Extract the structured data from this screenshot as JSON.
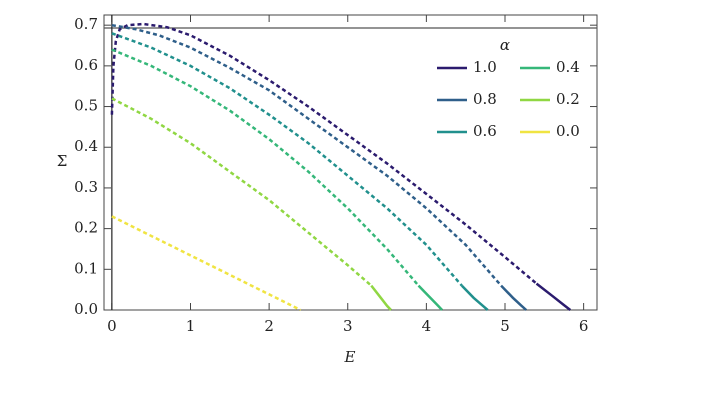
{
  "chart_data": {
    "type": "line",
    "xlabel": "E",
    "ylabel": "Σ",
    "legend_title": "α",
    "legend": "top-right",
    "xlim": [
      -0.1,
      6.17
    ],
    "ylim": [
      0,
      0.725
    ],
    "xticks": [
      0,
      1,
      2,
      3,
      4,
      5,
      6
    ],
    "yticks": [
      {
        "value": 0,
        "label": "0.0"
      },
      0.1,
      0.2,
      0.3,
      0.4,
      0.5,
      0.6,
      0.7
    ],
    "hlines": [
      0.693
    ],
    "vlines": [
      0
    ],
    "series": [
      {
        "name": "1.0",
        "color": "#2b1b6e",
        "x": [
          0,
          0.02,
          0.05,
          0.1,
          0.2,
          0.4,
          0.7,
          1,
          1.5,
          2,
          2.5,
          3,
          3.5,
          4,
          4.5,
          5,
          5.4
        ],
        "values": [
          0.48,
          0.6,
          0.66,
          0.69,
          0.7,
          0.703,
          0.695,
          0.675,
          0.625,
          0.565,
          0.5,
          0.43,
          0.36,
          0.285,
          0.21,
          0.13,
          0.065
        ],
        "solid_x": [
          5.4,
          5.6,
          5.75,
          5.83
        ],
        "solid_values": [
          0.065,
          0.035,
          0.012,
          0
        ]
      },
      {
        "name": "0.8",
        "color": "#2f5f8a",
        "x": [
          0,
          0.3,
          0.6,
          1,
          1.5,
          2,
          2.5,
          3,
          3.5,
          4,
          4.5,
          4.95
        ],
        "values": [
          0.7,
          0.69,
          0.675,
          0.645,
          0.595,
          0.54,
          0.47,
          0.4,
          0.33,
          0.25,
          0.16,
          0.06
        ],
        "solid_x": [
          4.95,
          5.1,
          5.2,
          5.27
        ],
        "solid_values": [
          0.06,
          0.03,
          0.012,
          0
        ]
      },
      {
        "name": "0.6",
        "color": "#21908d",
        "x": [
          0,
          0.5,
          1,
          1.5,
          2,
          2.5,
          3,
          3.5,
          4,
          4.45
        ],
        "values": [
          0.68,
          0.645,
          0.6,
          0.545,
          0.48,
          0.41,
          0.33,
          0.25,
          0.16,
          0.06
        ],
        "solid_x": [
          4.45,
          4.6,
          4.72,
          4.78
        ],
        "solid_values": [
          0.06,
          0.03,
          0.01,
          0
        ]
      },
      {
        "name": "0.4",
        "color": "#35b779",
        "x": [
          0,
          0.5,
          1,
          1.5,
          2,
          2.5,
          3,
          3.5,
          3.9
        ],
        "values": [
          0.64,
          0.6,
          0.55,
          0.49,
          0.42,
          0.34,
          0.25,
          0.15,
          0.06
        ],
        "solid_x": [
          3.9,
          4.05,
          4.15,
          4.2
        ],
        "solid_values": [
          0.06,
          0.03,
          0.01,
          0
        ]
      },
      {
        "name": "0.2",
        "color": "#90d743",
        "x": [
          0,
          0.5,
          1,
          1.5,
          2,
          2.5,
          3,
          3.3
        ],
        "values": [
          0.52,
          0.47,
          0.41,
          0.34,
          0.27,
          0.19,
          0.11,
          0.06
        ],
        "solid_x": [
          3.3,
          3.42,
          3.5,
          3.55
        ],
        "solid_values": [
          0.06,
          0.03,
          0.01,
          0
        ]
      },
      {
        "name": "0.0",
        "color": "#f0e442",
        "x": [
          0,
          2.4
        ],
        "values": [
          0.23,
          0
        ]
      }
    ]
  }
}
